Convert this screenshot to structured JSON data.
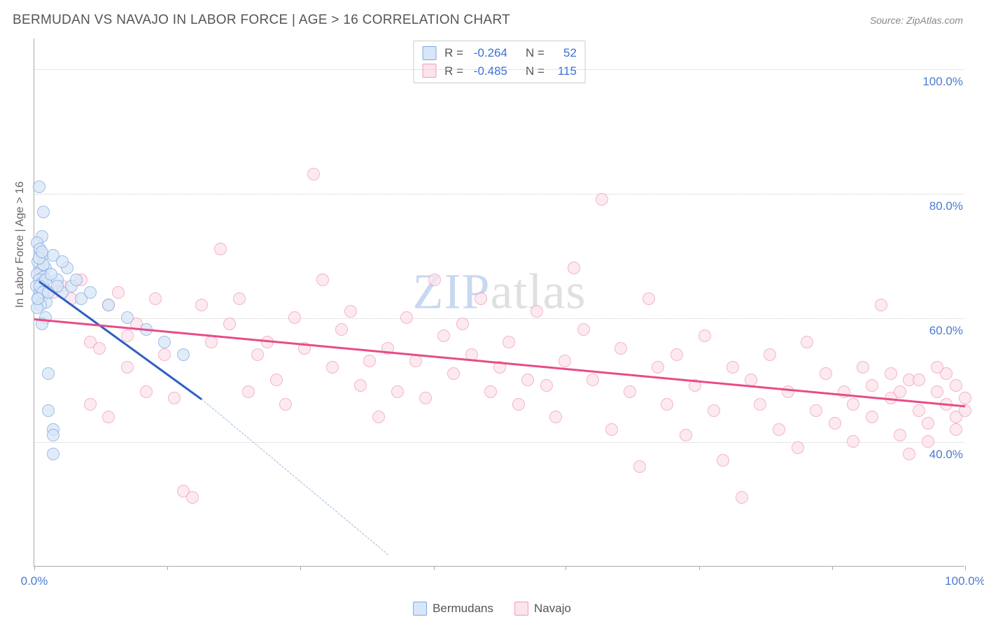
{
  "header": {
    "title": "BERMUDAN VS NAVAJO IN LABOR FORCE | AGE > 16 CORRELATION CHART",
    "source": "Source: ZipAtlas.com"
  },
  "chart": {
    "type": "scatter",
    "ylabel": "In Labor Force | Age > 16",
    "xlim": [
      0,
      100
    ],
    "ylim": [
      20,
      105
    ],
    "ytick_values": [
      40,
      60,
      80,
      100
    ],
    "ytick_labels": [
      "40.0%",
      "60.0%",
      "80.0%",
      "100.0%"
    ],
    "xtick_values": [
      0,
      14.3,
      28.6,
      42.9,
      57.1,
      71.4,
      85.7,
      100
    ],
    "xtick_labels_shown": {
      "0": "0.0%",
      "100": "100.0%"
    },
    "background_color": "#ffffff",
    "grid_color": "#cccccc",
    "axis_color": "#aaaaaa",
    "label_color": "#4a7bd0",
    "ylabel_color": "#666666",
    "ylabel_fontsize": 16,
    "tick_fontsize": 17,
    "marker_radius": 9,
    "series": [
      {
        "name": "Bermudans",
        "fill_color": "#d9e6f7",
        "stroke_color": "#7ea8e0",
        "fill_opacity": 0.75,
        "R": "-0.264",
        "N": "52",
        "trend": {
          "x1": 0.5,
          "y1": 66,
          "x2": 18,
          "y2": 47,
          "color": "#2e5fc4",
          "width": 2.5
        },
        "trend_extend": {
          "x1": 18,
          "y1": 47,
          "x2": 38,
          "y2": 22,
          "color": "#9bb5dd"
        },
        "points": [
          [
            0.5,
            81
          ],
          [
            1.0,
            77
          ],
          [
            0.8,
            73
          ],
          [
            0.3,
            72
          ],
          [
            0.6,
            71
          ],
          [
            0.9,
            70
          ],
          [
            0.4,
            69
          ],
          [
            1.2,
            68
          ],
          [
            0.7,
            67.5
          ],
          [
            0.3,
            67
          ],
          [
            1.0,
            66.5
          ],
          [
            0.5,
            66
          ],
          [
            0.8,
            65.5
          ],
          [
            0.2,
            65
          ],
          [
            1.1,
            64.5
          ],
          [
            0.6,
            64
          ],
          [
            0.9,
            63.5
          ],
          [
            0.4,
            63
          ],
          [
            1.3,
            62.5
          ],
          [
            0.7,
            62
          ],
          [
            0.3,
            61.5
          ],
          [
            1.0,
            68.5
          ],
          [
            0.5,
            69.5
          ],
          [
            0.8,
            70.5
          ],
          [
            1.2,
            66
          ],
          [
            0.6,
            65
          ],
          [
            0.9,
            64
          ],
          [
            0.4,
            63
          ],
          [
            2.5,
            66
          ],
          [
            3.0,
            64
          ],
          [
            4.0,
            65
          ],
          [
            5.0,
            63
          ],
          [
            6.0,
            64
          ],
          [
            8.0,
            62
          ],
          [
            10.0,
            60
          ],
          [
            12.0,
            58
          ],
          [
            14.0,
            56
          ],
          [
            16.0,
            54
          ],
          [
            1.5,
            51
          ],
          [
            1.5,
            45
          ],
          [
            2.0,
            42
          ],
          [
            2.0,
            41
          ],
          [
            2.0,
            38
          ],
          [
            3.5,
            68
          ],
          [
            4.5,
            66
          ],
          [
            2.0,
            70
          ],
          [
            3.0,
            69
          ],
          [
            1.8,
            67
          ],
          [
            2.5,
            65
          ],
          [
            1.2,
            60
          ],
          [
            0.8,
            59
          ],
          [
            1.5,
            64
          ]
        ]
      },
      {
        "name": "Navajo",
        "fill_color": "#fce4ec",
        "stroke_color": "#f19bb8",
        "fill_opacity": 0.75,
        "R": "-0.485",
        "N": "115",
        "trend": {
          "x1": 0,
          "y1": 60,
          "x2": 100,
          "y2": 46,
          "color": "#e84b88",
          "width": 2.5
        },
        "points": [
          [
            1,
            66
          ],
          [
            2,
            64
          ],
          [
            3,
            65
          ],
          [
            4,
            63
          ],
          [
            5,
            66
          ],
          [
            6,
            56
          ],
          [
            7,
            55
          ],
          [
            8,
            62
          ],
          [
            9,
            64
          ],
          [
            10,
            57
          ],
          [
            11,
            59
          ],
          [
            12,
            48
          ],
          [
            13,
            63
          ],
          [
            14,
            54
          ],
          [
            15,
            47
          ],
          [
            16,
            32
          ],
          [
            17,
            31
          ],
          [
            6,
            46
          ],
          [
            8,
            44
          ],
          [
            10,
            52
          ],
          [
            18,
            62
          ],
          [
            19,
            56
          ],
          [
            20,
            71
          ],
          [
            21,
            59
          ],
          [
            22,
            63
          ],
          [
            23,
            48
          ],
          [
            24,
            54
          ],
          [
            25,
            56
          ],
          [
            26,
            50
          ],
          [
            27,
            46
          ],
          [
            28,
            60
          ],
          [
            29,
            55
          ],
          [
            30,
            83
          ],
          [
            31,
            66
          ],
          [
            32,
            52
          ],
          [
            33,
            58
          ],
          [
            34,
            61
          ],
          [
            35,
            49
          ],
          [
            36,
            53
          ],
          [
            37,
            44
          ],
          [
            38,
            55
          ],
          [
            39,
            48
          ],
          [
            40,
            60
          ],
          [
            41,
            53
          ],
          [
            42,
            47
          ],
          [
            43,
            66
          ],
          [
            44,
            57
          ],
          [
            45,
            51
          ],
          [
            46,
            59
          ],
          [
            47,
            54
          ],
          [
            48,
            63
          ],
          [
            49,
            48
          ],
          [
            50,
            52
          ],
          [
            51,
            56
          ],
          [
            52,
            46
          ],
          [
            53,
            50
          ],
          [
            54,
            61
          ],
          [
            55,
            49
          ],
          [
            56,
            44
          ],
          [
            57,
            53
          ],
          [
            58,
            68
          ],
          [
            59,
            58
          ],
          [
            60,
            50
          ],
          [
            61,
            79
          ],
          [
            62,
            42
          ],
          [
            63,
            55
          ],
          [
            64,
            48
          ],
          [
            65,
            36
          ],
          [
            66,
            63
          ],
          [
            67,
            52
          ],
          [
            68,
            46
          ],
          [
            69,
            54
          ],
          [
            70,
            41
          ],
          [
            71,
            49
          ],
          [
            72,
            57
          ],
          [
            73,
            45
          ],
          [
            74,
            37
          ],
          [
            75,
            52
          ],
          [
            76,
            31
          ],
          [
            77,
            50
          ],
          [
            78,
            46
          ],
          [
            79,
            54
          ],
          [
            80,
            42
          ],
          [
            81,
            48
          ],
          [
            82,
            39
          ],
          [
            83,
            56
          ],
          [
            84,
            45
          ],
          [
            85,
            51
          ],
          [
            86,
            43
          ],
          [
            87,
            48
          ],
          [
            88,
            40
          ],
          [
            89,
            52
          ],
          [
            90,
            44
          ],
          [
            91,
            62
          ],
          [
            92,
            47
          ],
          [
            93,
            41
          ],
          [
            94,
            50
          ],
          [
            95,
            45
          ],
          [
            96,
            43
          ],
          [
            97,
            48
          ],
          [
            98,
            51
          ],
          [
            98,
            46
          ],
          [
            99,
            44
          ],
          [
            99,
            49
          ],
          [
            99,
            42
          ],
          [
            100,
            47
          ],
          [
            100,
            45
          ],
          [
            96,
            40
          ],
          [
            94,
            38
          ],
          [
            92,
            51
          ],
          [
            90,
            49
          ],
          [
            88,
            46
          ],
          [
            93,
            48
          ],
          [
            95,
            50
          ],
          [
            97,
            52
          ]
        ]
      }
    ]
  },
  "legend_box": {
    "stat1_label": "R =",
    "stat2_label": "N ="
  },
  "bottom_legend": {
    "items": [
      "Bermudans",
      "Navajo"
    ]
  },
  "watermark": {
    "prefix": "ZIP",
    "suffix": "atlas"
  }
}
